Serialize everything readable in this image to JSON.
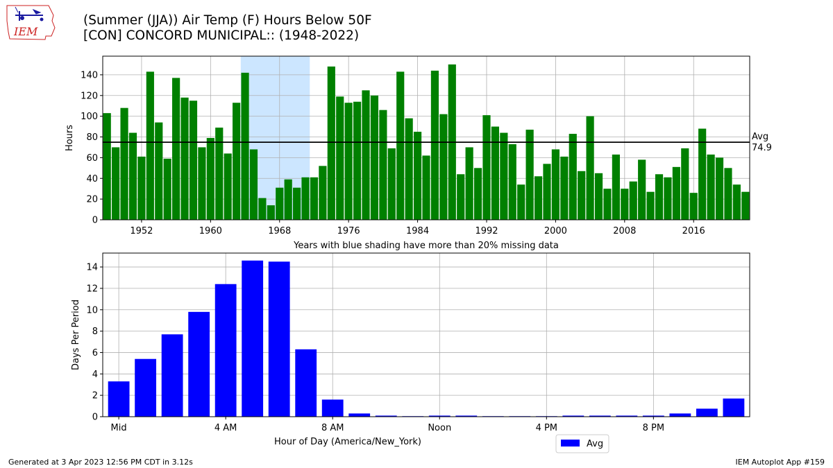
{
  "title": {
    "line1": "(Summer (JJA)) Air Temp (F) Hours Below 50F",
    "line2": "[CON] CONCORD MUNICIPAL:: (1948-2022)"
  },
  "logo": {
    "text": "IEM",
    "icon": "iem-weather-station-logo"
  },
  "colors": {
    "top_bars": "#008000",
    "bottom_bars": "#0000ff",
    "shade": "#cce6ff",
    "grid": "#b0b0b0",
    "avg_line": "#000000",
    "logo_red": "#cc2222",
    "logo_blue": "#1a1aa0"
  },
  "footer": {
    "left": "Generated at 3 Apr 2023 12:56 PM CDT in 3.12s",
    "right": "IEM Autoplot App #159"
  },
  "chart_data": [
    {
      "type": "bar",
      "ylabel": "Hours",
      "xlabel": "Years with blue shading have more than 20% missing data",
      "ylim": [
        0,
        158
      ],
      "xlim": [
        1947.5,
        2022.5
      ],
      "yticks": [
        0,
        20,
        40,
        60,
        80,
        100,
        120,
        140
      ],
      "xticks": [
        {
          "value": 1952,
          "label": "1952"
        },
        {
          "value": 1960,
          "label": "1960"
        },
        {
          "value": 1968,
          "label": "1968"
        },
        {
          "value": 1976,
          "label": "1976"
        },
        {
          "value": 1984,
          "label": "1984"
        },
        {
          "value": 1992,
          "label": "1992"
        },
        {
          "value": 2000,
          "label": "2000"
        },
        {
          "value": 2008,
          "label": "2008"
        },
        {
          "value": 2016,
          "label": "2016"
        }
      ],
      "grid": true,
      "x": [
        1948,
        1949,
        1950,
        1951,
        1952,
        1953,
        1954,
        1955,
        1956,
        1957,
        1958,
        1959,
        1960,
        1961,
        1962,
        1963,
        1964,
        1965,
        1966,
        1967,
        1968,
        1969,
        1970,
        1971,
        1972,
        1973,
        1974,
        1975,
        1976,
        1977,
        1978,
        1979,
        1980,
        1981,
        1982,
        1983,
        1984,
        1985,
        1986,
        1987,
        1988,
        1989,
        1990,
        1991,
        1992,
        1993,
        1994,
        1995,
        1996,
        1997,
        1998,
        1999,
        2000,
        2001,
        2002,
        2003,
        2004,
        2005,
        2006,
        2007,
        2008,
        2009,
        2010,
        2011,
        2012,
        2013,
        2014,
        2015,
        2016,
        2017,
        2018,
        2019,
        2020,
        2021,
        2022
      ],
      "values": [
        103,
        70,
        108,
        84,
        61,
        143,
        94,
        59,
        137,
        118,
        115,
        70,
        79,
        89,
        64,
        113,
        142,
        68,
        21,
        14,
        31,
        39,
        31,
        41,
        41,
        52,
        148,
        119,
        113,
        114,
        125,
        120,
        106,
        69,
        143,
        98,
        85,
        62,
        144,
        102,
        150,
        44,
        70,
        50,
        101,
        90,
        84,
        73,
        34,
        87,
        42,
        54,
        68,
        61,
        83,
        47,
        100,
        45,
        30,
        63,
        30,
        37,
        58,
        27,
        44,
        41,
        51,
        69,
        26,
        88,
        63,
        60,
        50,
        34,
        27
      ],
      "shaded_ranges": [
        [
          1963.5,
          1971.5
        ]
      ],
      "avg": {
        "value": 74.9,
        "label_top": "Avg",
        "label_bottom": "74.9"
      }
    },
    {
      "type": "bar",
      "ylabel": "Days Per Period",
      "xlabel": "Hour of Day (America/New_York)",
      "ylim": [
        0,
        15.3
      ],
      "xlim": [
        -0.6,
        23.6
      ],
      "yticks": [
        0,
        2,
        4,
        6,
        8,
        10,
        12,
        14
      ],
      "xticks": [
        {
          "value": 0,
          "label": "Mid"
        },
        {
          "value": 4,
          "label": "4 AM"
        },
        {
          "value": 8,
          "label": "8 AM"
        },
        {
          "value": 12,
          "label": "Noon"
        },
        {
          "value": 16,
          "label": "4 PM"
        },
        {
          "value": 20,
          "label": "8 PM"
        }
      ],
      "grid": true,
      "x": [
        0,
        1,
        2,
        3,
        4,
        5,
        6,
        7,
        8,
        9,
        10,
        11,
        12,
        13,
        14,
        15,
        16,
        17,
        18,
        19,
        20,
        21,
        22,
        23
      ],
      "values": [
        3.3,
        5.4,
        7.7,
        9.8,
        12.4,
        14.6,
        14.5,
        6.3,
        1.6,
        0.3,
        0.1,
        0.05,
        0.1,
        0.1,
        0.05,
        0.05,
        0.05,
        0.1,
        0.1,
        0.1,
        0.1,
        0.3,
        0.75,
        1.7
      ],
      "legend": {
        "label": "Avg",
        "placement": "below-right"
      }
    }
  ]
}
